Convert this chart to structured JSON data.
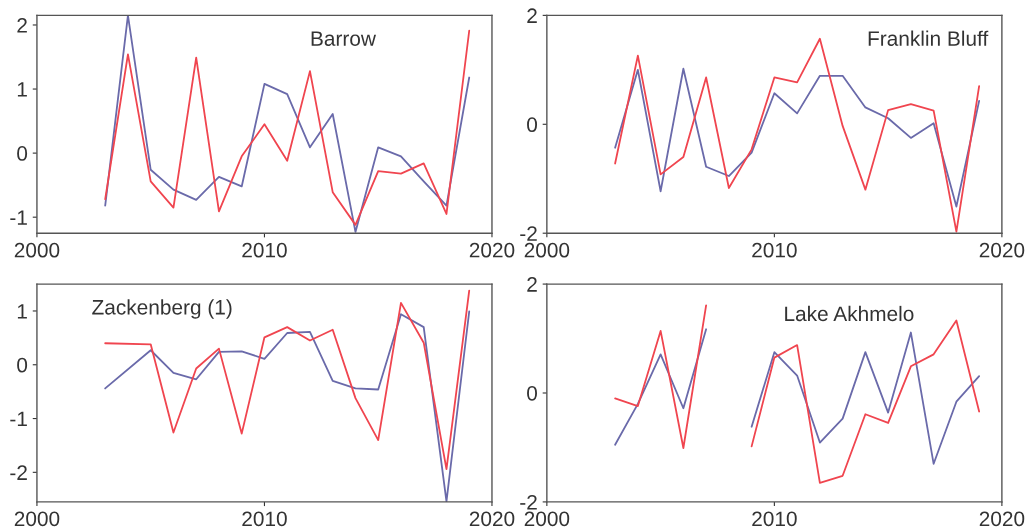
{
  "chart_data": [
    {
      "type": "line",
      "annotations": [
        "Barrow"
      ],
      "x": [
        2003,
        2004,
        2005,
        2006,
        2007,
        2008,
        2009,
        2010,
        2011,
        2012,
        2013,
        2014,
        2015,
        2016,
        2017,
        2018,
        2019
      ],
      "xlim": [
        2000,
        2020
      ],
      "xticks": [
        2000,
        2010,
        2020
      ],
      "ylim": [
        -1.25,
        2.15
      ],
      "yticks": [
        -1,
        0,
        1,
        2
      ],
      "series": [
        {
          "color": "#6a6aaa",
          "values": [
            -0.82,
            2.15,
            -0.26,
            -0.57,
            -0.73,
            -0.37,
            -0.52,
            1.08,
            0.92,
            0.09,
            0.61,
            -1.23,
            0.09,
            -0.05,
            -0.44,
            -0.82,
            1.18
          ]
        },
        {
          "color": "#f0454f",
          "values": [
            -0.72,
            1.54,
            -0.44,
            -0.85,
            1.49,
            -0.91,
            -0.05,
            0.45,
            -0.12,
            1.28,
            -0.61,
            -1.12,
            -0.28,
            -0.32,
            -0.16,
            -0.95,
            1.91
          ]
        }
      ]
    },
    {
      "type": "line",
      "annotations": [
        "Franklin Bluff"
      ],
      "x": [
        2003,
        2004,
        2005,
        2006,
        2007,
        2008,
        2009,
        2010,
        2011,
        2012,
        2013,
        2014,
        2015,
        2016,
        2017,
        2018,
        2019
      ],
      "xlim": [
        2000,
        2020
      ],
      "xticks": [
        2000,
        2010,
        2020
      ],
      "ylim": [
        -2,
        2
      ],
      "yticks": [
        -2,
        0,
        2
      ],
      "series": [
        {
          "color": "#6a6aaa",
          "values": [
            -0.43,
            1.0,
            -1.23,
            1.02,
            -0.78,
            -0.95,
            -0.52,
            0.57,
            0.2,
            0.89,
            0.89,
            0.31,
            0.11,
            -0.25,
            0.02,
            -1.51,
            0.43
          ]
        },
        {
          "color": "#f0454f",
          "values": [
            -0.72,
            1.26,
            -0.92,
            -0.6,
            0.86,
            -1.17,
            -0.46,
            0.86,
            0.77,
            1.57,
            -0.03,
            -1.2,
            0.26,
            0.37,
            0.25,
            -1.97,
            0.7
          ]
        }
      ]
    },
    {
      "type": "line",
      "annotations": [
        "Zackenberg (1)"
      ],
      "x": [
        2003,
        2005,
        2006,
        2007,
        2008,
        2009,
        2010,
        2011,
        2012,
        2013,
        2014,
        2015,
        2016,
        2017,
        2018,
        2019
      ],
      "xlim": [
        2000,
        2020
      ],
      "xticks": [
        2000,
        2010,
        2020
      ],
      "ylim": [
        -2.55,
        1.5
      ],
      "yticks": [
        -2,
        -1,
        0,
        1
      ],
      "series": [
        {
          "color": "#6a6aaa",
          "values": [
            -0.44,
            0.27,
            -0.15,
            -0.27,
            0.24,
            0.25,
            0.11,
            0.59,
            0.61,
            -0.3,
            -0.44,
            -0.46,
            0.94,
            0.7,
            -2.54,
            0.99
          ]
        },
        {
          "color": "#f0454f",
          "values": [
            0.4,
            0.38,
            -1.26,
            -0.07,
            0.3,
            -1.28,
            0.51,
            0.7,
            0.45,
            0.65,
            -0.62,
            -1.4,
            1.15,
            0.41,
            -1.94,
            1.38
          ]
        }
      ]
    },
    {
      "type": "line",
      "annotations": [
        "Lake Akhmelo"
      ],
      "x": [
        2003,
        2004,
        2005,
        2006,
        2007,
        2008,
        2009,
        2010,
        2011,
        2012,
        2013,
        2014,
        2015,
        2016,
        2017,
        2018,
        2019
      ],
      "xlim": [
        2000,
        2020
      ],
      "xticks": [
        2000,
        2010,
        2020
      ],
      "ylim": [
        -2,
        2
      ],
      "yticks": [
        -2,
        0,
        2
      ],
      "series": [
        {
          "color": "#6a6aaa",
          "values": [
            -0.95,
            -0.2,
            0.71,
            -0.28,
            1.17,
            null,
            -0.62,
            0.75,
            0.32,
            -0.91,
            -0.47,
            0.75,
            -0.36,
            1.11,
            -1.3,
            -0.16,
            0.31
          ]
        },
        {
          "color": "#f0454f",
          "values": [
            -0.1,
            -0.24,
            1.14,
            -1.01,
            1.61,
            null,
            -0.98,
            0.65,
            0.88,
            -1.65,
            -1.52,
            -0.39,
            -0.55,
            0.49,
            0.71,
            1.33,
            -0.34
          ]
        }
      ]
    }
  ]
}
